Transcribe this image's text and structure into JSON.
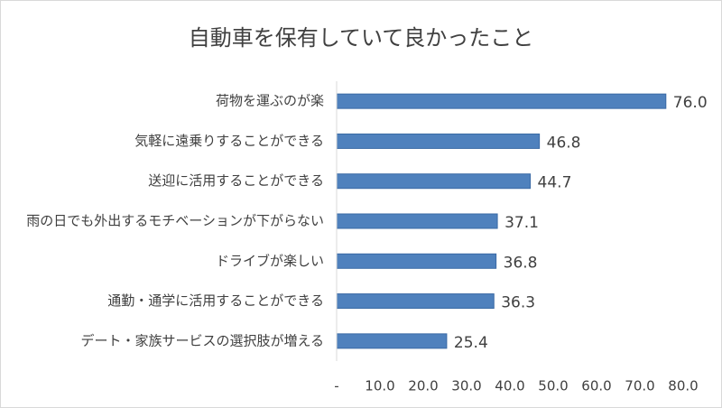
{
  "chart_data": {
    "type": "bar",
    "orientation": "horizontal",
    "title": "自動車を保有していて良かったこと",
    "categories": [
      "荷物を運ぶのが楽",
      "気軽に遠乗りすることができる",
      "送迎に活用することができる",
      "雨の日でも外出するモチベーションが下がらない",
      "ドライブが楽しい",
      "通勤・通学に活用することができる",
      "デート・家族サービスの選択肢が増える"
    ],
    "values": [
      76.0,
      46.8,
      44.7,
      37.1,
      36.8,
      36.3,
      25.4
    ],
    "value_labels": [
      "76.0",
      "46.8",
      "44.7",
      "37.1",
      "36.8",
      "36.3",
      "25.4"
    ],
    "color": "#4f81bd",
    "xlim": [
      0,
      80
    ],
    "xticks": [
      {
        "value": 0,
        "label": "-"
      },
      {
        "value": 10,
        "label": "10.0"
      },
      {
        "value": 20,
        "label": "20.0"
      },
      {
        "value": 30,
        "label": "30.0"
      },
      {
        "value": 40,
        "label": "40.0"
      },
      {
        "value": 50,
        "label": "50.0"
      },
      {
        "value": 60,
        "label": "60.0"
      },
      {
        "value": 70,
        "label": "70.0"
      },
      {
        "value": 80,
        "label": "80.0"
      }
    ],
    "grid": false
  }
}
